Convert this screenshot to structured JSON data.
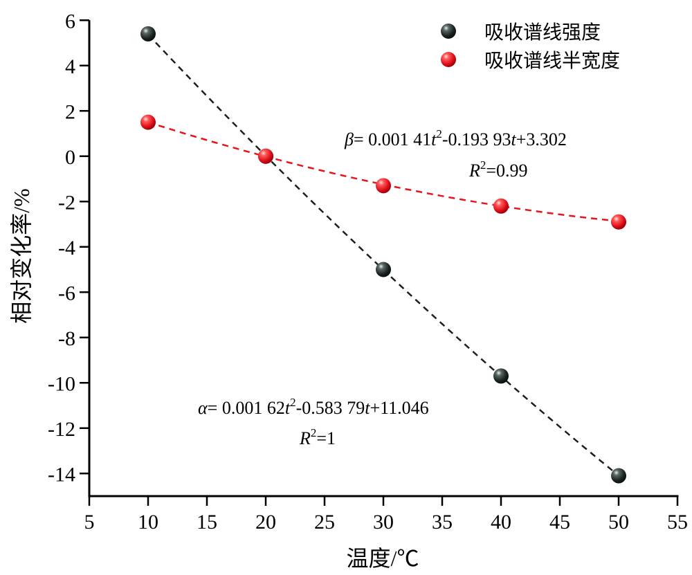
{
  "chart_data": {
    "type": "scatter",
    "xlabel": "温度/℃",
    "ylabel": "相对变化率/%",
    "xlim": [
      5,
      55
    ],
    "ylim": [
      -15,
      6
    ],
    "xticks": [
      5,
      10,
      15,
      20,
      25,
      30,
      35,
      40,
      45,
      50,
      55
    ],
    "yticks": [
      6,
      4,
      2,
      0,
      -2,
      -4,
      -6,
      -8,
      -10,
      -12,
      -14
    ],
    "grid": false,
    "legend_position": "top-right",
    "series": [
      {
        "name": "吸收谱线强度",
        "color": "#1a1f1f",
        "x": [
          10,
          20,
          30,
          40,
          50
        ],
        "y": [
          5.4,
          0,
          -5.0,
          -9.7,
          -14.1
        ],
        "fit": {
          "a": 0.00162,
          "b": -0.58379,
          "c": 11.046
        }
      },
      {
        "name": "吸收谱线半宽度",
        "color": "#e8141c",
        "x": [
          10,
          20,
          30,
          40,
          50
        ],
        "y": [
          1.5,
          0,
          -1.3,
          -2.2,
          -2.9
        ],
        "fit": {
          "a": 0.00141,
          "b": -0.19393,
          "c": 3.302
        }
      }
    ],
    "annotations": {
      "beta": {
        "sym": "β",
        "p1": "= 0.001 41",
        "t1": "t",
        "sup": "2",
        "p2": "-0.193 93",
        "t2": "t",
        "p3": "+3.302",
        "r": "R",
        "rsup": "2",
        "rval": "=0.99"
      },
      "alpha": {
        "sym": "α",
        "p1": "= 0.001 62",
        "t1": "t",
        "sup": "2",
        "p2": "-0.583 79",
        "t2": "t",
        "p3": "+11.046",
        "r": "R",
        "rsup": "2",
        "rval": "=1"
      }
    }
  }
}
